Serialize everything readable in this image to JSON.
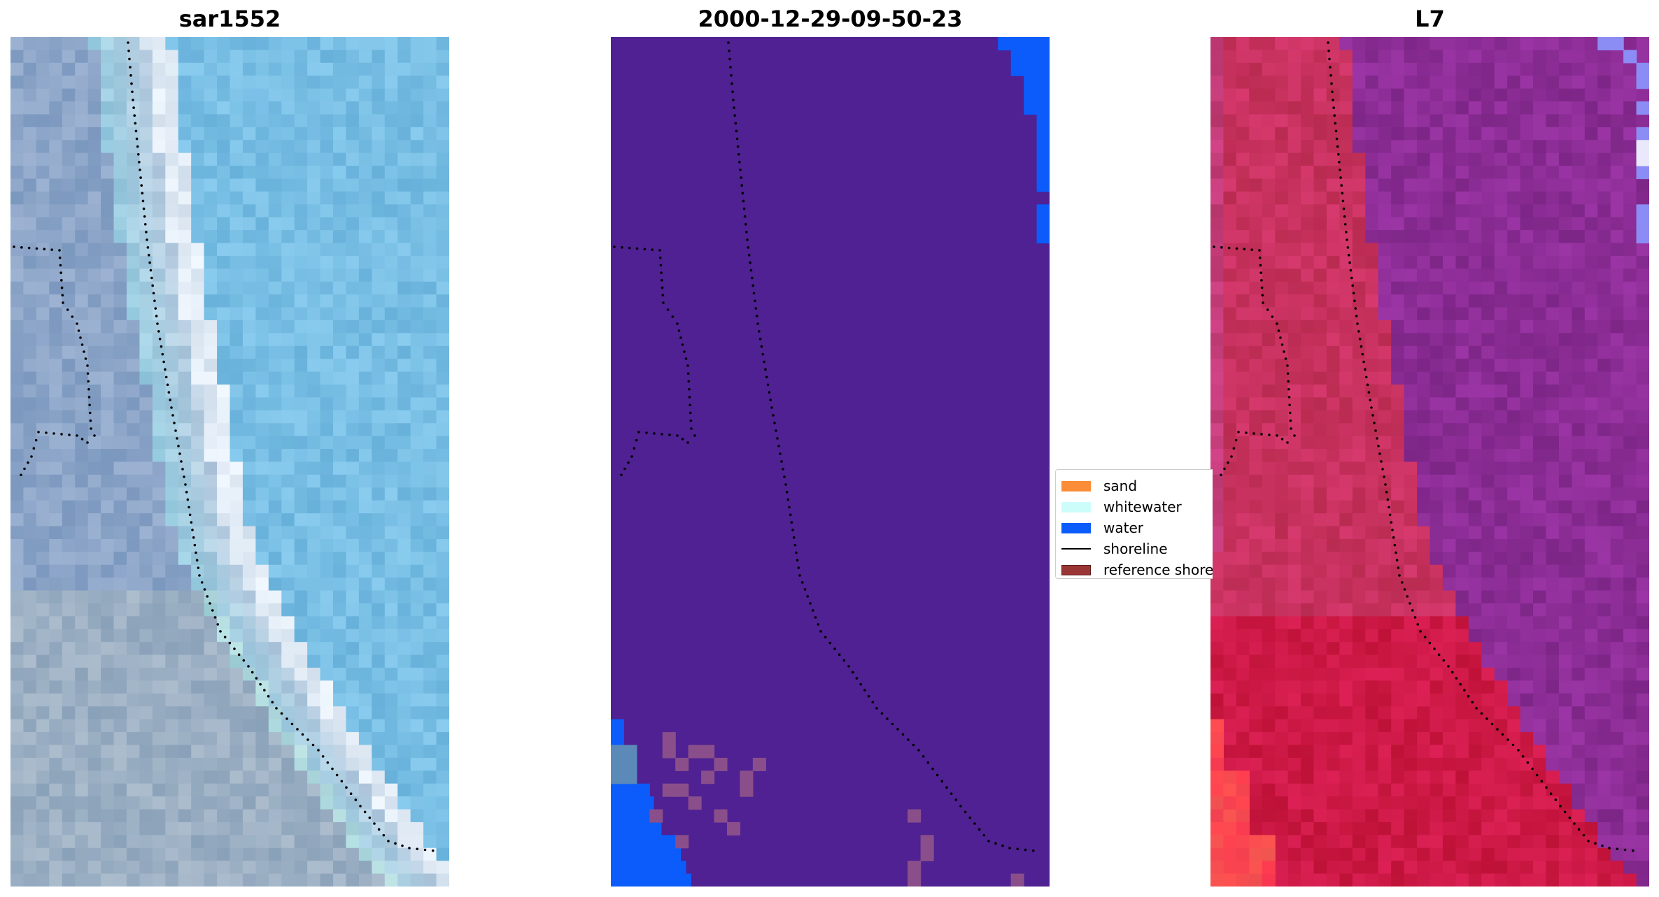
{
  "panels": [
    {
      "title": "sar1552",
      "kind": "rgb",
      "base": "#7fb4df"
    },
    {
      "title": "2000-12-29-09-50-23",
      "kind": "classified",
      "base": "#4f2192"
    },
    {
      "title": "L7",
      "kind": "false-color",
      "base": "#8a2e8f"
    }
  ],
  "legend": {
    "items": [
      {
        "label": "sand",
        "color": "#fb8c38",
        "type": "patch"
      },
      {
        "label": "whitewater",
        "color": "#cdfdfb",
        "type": "patch"
      },
      {
        "label": "water",
        "color": "#0b5cfb",
        "type": "patch"
      },
      {
        "label": "shoreline",
        "color": "#000000",
        "type": "line"
      },
      {
        "label": "reference shoreline",
        "color": "#9a3535",
        "type": "patch"
      }
    ]
  }
}
